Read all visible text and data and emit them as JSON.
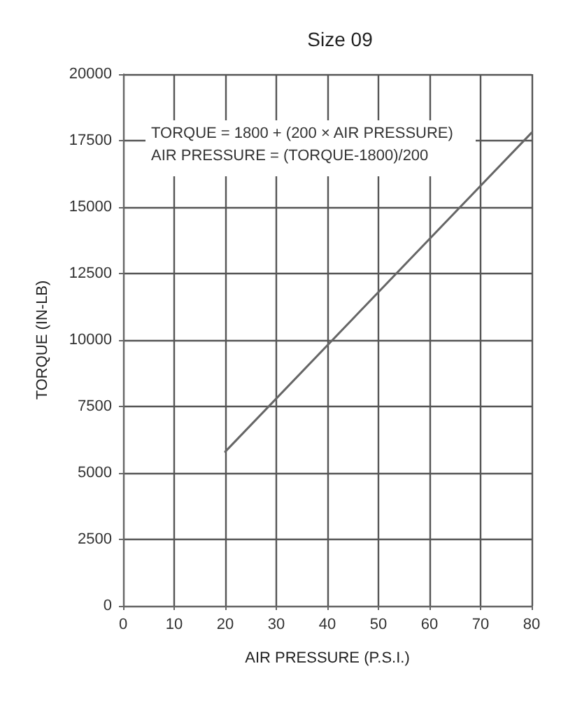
{
  "chart_data": {
    "type": "line",
    "title": "Size 09",
    "xlabel": "AIR PRESSURE (P.S.I.)",
    "ylabel": "TORQUE (IN-LB)",
    "x": [
      20,
      80
    ],
    "series": [
      {
        "color": "#666666",
        "values": [
          5800,
          17800
        ]
      }
    ],
    "xlim": [
      0,
      80
    ],
    "xticks": [
      0,
      10,
      20,
      30,
      40,
      50,
      60,
      70,
      80
    ],
    "ylim": [
      0,
      20000
    ],
    "yticks": [
      0,
      2500,
      5000,
      7500,
      10000,
      12500,
      15000,
      17500,
      20000
    ],
    "grid": true,
    "marker": "none",
    "line_style": "solid",
    "annotations": [
      "TORQUE = 1800 + (200 × AIR PRESSURE)",
      "AIR PRESSURE = (TORQUE-1800)/200"
    ]
  }
}
